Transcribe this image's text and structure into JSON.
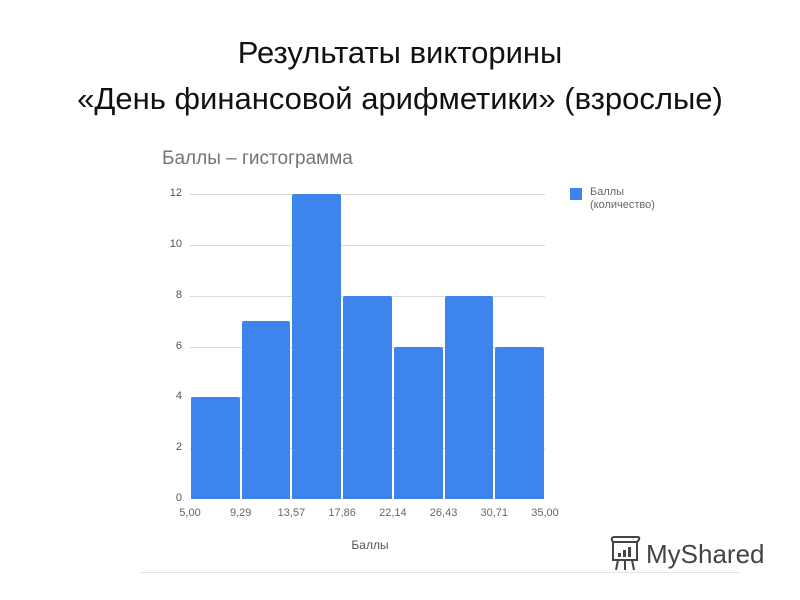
{
  "slide": {
    "title_line1": "Результаты викторины",
    "title_line2": "«День финансовой арифметики» (взрослые)"
  },
  "chart_data": {
    "type": "bar",
    "subtype": "histogram",
    "title": "Баллы – гистограмма",
    "xlabel": "Баллы",
    "ylabel": "",
    "bin_edges": [
      "5,00",
      "9,29",
      "13,57",
      "17,86",
      "22,14",
      "26,43",
      "30,71",
      "35,00"
    ],
    "categories": [
      "5,00–9,29",
      "9,29–13,57",
      "13,57–17,86",
      "17,86–22,14",
      "22,14–26,43",
      "26,43–30,71",
      "30,71–35,00"
    ],
    "values": [
      4,
      7,
      12,
      8,
      6,
      8,
      6
    ],
    "series": [
      {
        "name": "Баллы (количество)",
        "values": [
          4,
          7,
          12,
          8,
          6,
          8,
          6
        ],
        "color": "#3d85ec"
      }
    ],
    "yticks": [
      "0",
      "2",
      "4",
      "6",
      "8",
      "10",
      "12"
    ],
    "ylim": [
      0,
      12
    ],
    "grid": true,
    "legend_position": "right"
  },
  "legend": {
    "line1": "Баллы",
    "line2": "(количество)"
  },
  "watermark": {
    "text": "MyShared"
  }
}
